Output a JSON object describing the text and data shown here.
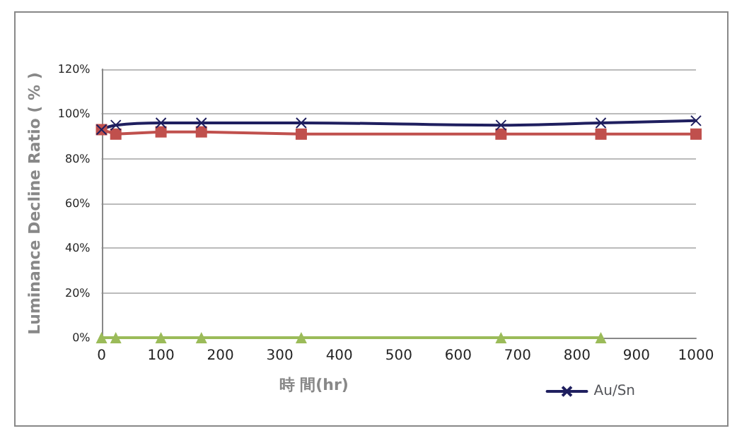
{
  "chart_data": {
    "type": "line",
    "xlabel": "時 間(hr)",
    "ylabel": "Luminance Decline Ratio ( % )",
    "xlim": [
      0,
      1000
    ],
    "xticks": [
      0,
      100,
      200,
      300,
      400,
      500,
      600,
      700,
      800,
      900,
      1000
    ],
    "ylim": [
      0,
      120
    ],
    "yticks": [
      {
        "value": 0,
        "label": "0%"
      },
      {
        "value": 20,
        "label": "20%"
      },
      {
        "value": 40,
        "label": "40%"
      },
      {
        "value": 60,
        "label": "60%"
      },
      {
        "value": 80,
        "label": "80%"
      },
      {
        "value": 100,
        "label": "100%"
      },
      {
        "value": 120,
        "label": "120%"
      }
    ],
    "grid": "y",
    "legend": "bottom right",
    "series": [
      {
        "color": "#c0504d",
        "marker": "square",
        "x": [
          0,
          24,
          100,
          168,
          336,
          672,
          840,
          1000
        ],
        "values": [
          93,
          91,
          92,
          92,
          91,
          91,
          91,
          91
        ]
      },
      {
        "name": "Au/Sn",
        "color": "#1f1f5f",
        "marker": "cross",
        "x": [
          0,
          24,
          100,
          168,
          336,
          672,
          840,
          1000
        ],
        "values": [
          93,
          95,
          96,
          96,
          96,
          95,
          96,
          97
        ]
      },
      {
        "color": "#9bbb59",
        "marker": "triangle",
        "x": [
          0,
          24,
          100,
          168,
          336,
          672,
          840
        ],
        "values": [
          0,
          0,
          0,
          0,
          0,
          0,
          0
        ]
      }
    ]
  }
}
